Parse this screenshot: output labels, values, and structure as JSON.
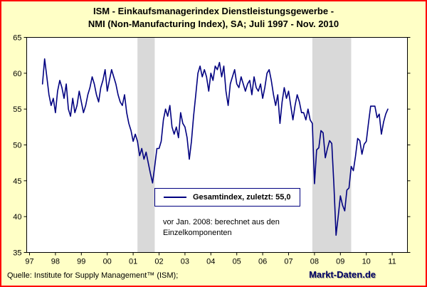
{
  "title": {
    "line1": "ISM - Einkaufsmanagerindex Dienstleistungsgewerbe -",
    "line2": "NMI (Non-Manufacturing Index), SA;  Juli 1997 - Nov. 2010"
  },
  "footer": {
    "source": "Quelle: Institute for Supply Management™ (ISM);",
    "brand": "Markt-Daten.de"
  },
  "colors": {
    "page_background": "#FFFFC6",
    "page_border": "#FF0000",
    "plot_background": "#FFFFFF",
    "plot_border": "#000000",
    "line": "#000080",
    "recession_band": "#D9D9D9",
    "brand_text": "#000066"
  },
  "chart_data": {
    "type": "line",
    "title": "ISM - Einkaufsmanagerindex Dienstleistungsgewerbe - NMI (Non-Manufacturing Index), SA; Juli 1997 - Nov. 2010",
    "xlabel": "",
    "ylabel": "",
    "ylim": [
      35,
      65
    ],
    "yticks": [
      35,
      40,
      45,
      50,
      55,
      60,
      65
    ],
    "xticks": [
      "97",
      "98",
      "99",
      "00",
      "01",
      "02",
      "03",
      "04",
      "05",
      "06",
      "07",
      "08",
      "09",
      "10",
      "11"
    ],
    "grid": false,
    "frequency": "monthly",
    "start": "1997-07",
    "end": "2010-11",
    "recession_bands": [
      {
        "start": "2001-03",
        "end": "2001-11"
      },
      {
        "start": "2007-12",
        "end": "2009-06"
      }
    ],
    "legend": {
      "label": "Gesamtindex, zuletzt: 55,0",
      "position": "inside-lower-center"
    },
    "annotation": {
      "line1": "vor Jan. 2008: berechnet aus den",
      "line2": "Einzelkomponenten"
    },
    "series": [
      {
        "name": "Gesamtindex",
        "color": "#000080",
        "last_value": 55.0,
        "values": [
          58.5,
          62.0,
          59.5,
          57.0,
          55.5,
          56.5,
          54.5,
          57.5,
          59.0,
          58.0,
          56.5,
          58.5,
          55.0,
          54.0,
          56.5,
          54.5,
          55.5,
          57.5,
          56.0,
          54.5,
          55.5,
          57.0,
          58.0,
          59.5,
          58.5,
          57.0,
          56.0,
          58.0,
          59.0,
          60.5,
          57.5,
          59.0,
          60.5,
          59.5,
          58.5,
          57.0,
          56.0,
          55.5,
          57.0,
          54.5,
          53.0,
          52.0,
          50.5,
          51.5,
          50.5,
          48.5,
          49.5,
          48.0,
          49.0,
          47.5,
          46.0,
          44.7,
          47.0,
          49.5,
          49.5,
          50.5,
          53.5,
          55.0,
          54.0,
          55.5,
          52.5,
          51.5,
          52.5,
          51.0,
          54.5,
          53.0,
          52.5,
          51.0,
          48.0,
          50.5,
          54.0,
          57.0,
          60.0,
          61.0,
          59.5,
          60.5,
          59.5,
          57.5,
          60.0,
          59.0,
          61.0,
          60.5,
          61.5,
          59.5,
          61.0,
          57.5,
          55.5,
          58.5,
          59.5,
          60.5,
          58.5,
          58.0,
          59.5,
          58.5,
          57.5,
          58.5,
          59.0,
          57.0,
          59.5,
          58.0,
          57.5,
          58.5,
          56.5,
          58.0,
          60.0,
          60.5,
          59.0,
          57.0,
          55.5,
          57.0,
          53.0,
          56.0,
          58.0,
          56.5,
          57.5,
          55.5,
          53.5,
          55.5,
          57.0,
          56.0,
          54.5,
          54.5,
          53.5,
          55.0,
          53.5,
          53.0,
          44.6,
          49.3,
          49.6,
          52.0,
          51.7,
          48.2,
          49.5,
          50.6,
          50.2,
          44.4,
          37.4,
          40.1,
          42.9,
          41.6,
          40.8,
          43.7,
          44.0,
          47.0,
          46.4,
          48.4,
          50.9,
          50.6,
          48.7,
          50.1,
          50.5,
          53.0,
          55.4,
          55.4,
          55.4,
          53.8,
          54.3,
          51.5,
          53.2,
          54.3,
          55.0
        ]
      }
    ]
  }
}
